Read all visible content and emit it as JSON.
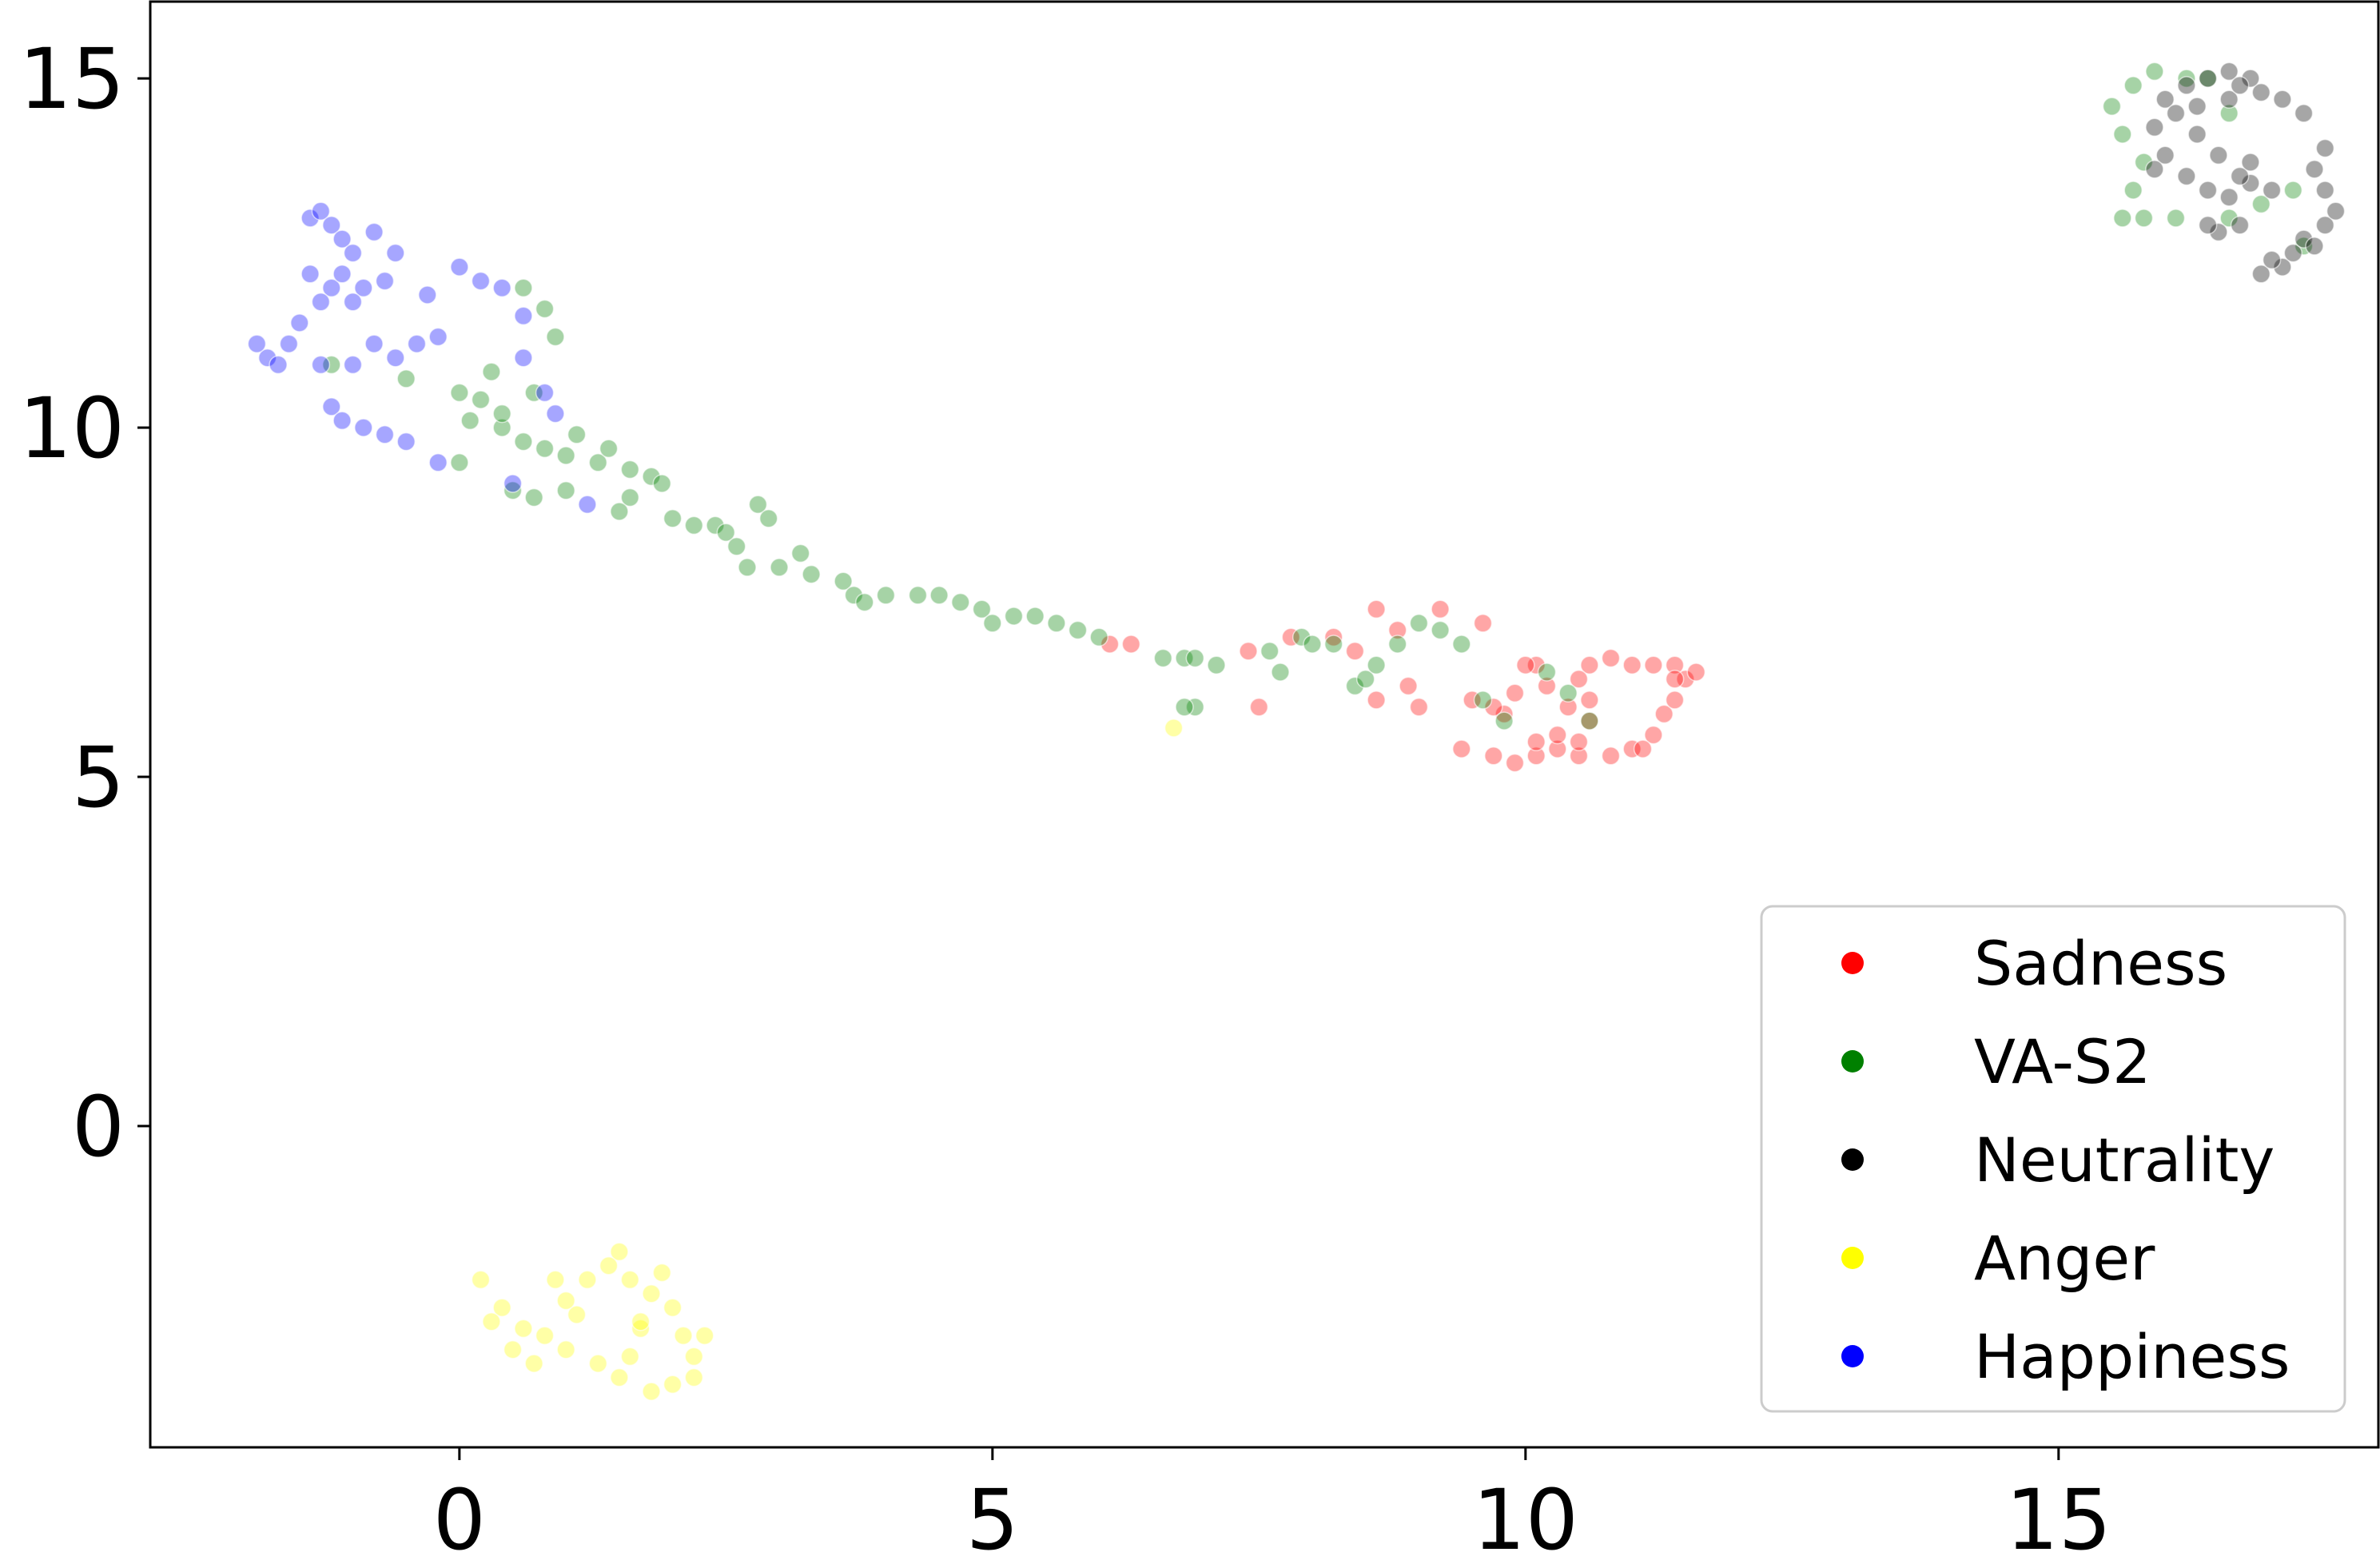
{
  "chart_data": {
    "type": "scatter",
    "title": "",
    "xlabel": "",
    "ylabel": "",
    "xlim": [
      -2.9,
      18.0
    ],
    "ylim": [
      -4.6,
      16.1
    ],
    "xticks": [
      0,
      5,
      10,
      15
    ],
    "yticks": [
      0,
      5,
      10,
      15
    ],
    "xtick_labels": [
      "0",
      "5",
      "10",
      "15"
    ],
    "ytick_labels": [
      "0",
      "5",
      "10",
      "15"
    ],
    "grid": false,
    "legend": "bottom-right",
    "point_alpha": 0.35,
    "series": [
      {
        "name": "Sadness",
        "color": "#ff0000",
        "points": [
          [
            9.7,
            5.3
          ],
          [
            9.9,
            5.2
          ],
          [
            10.1,
            5.3
          ],
          [
            10.3,
            5.4
          ],
          [
            10.5,
            5.3
          ],
          [
            10.8,
            5.3
          ],
          [
            11.0,
            5.4
          ],
          [
            11.2,
            5.6
          ],
          [
            11.3,
            5.9
          ],
          [
            11.4,
            6.1
          ],
          [
            11.5,
            6.4
          ],
          [
            11.6,
            6.5
          ],
          [
            11.4,
            6.6
          ],
          [
            11.2,
            6.6
          ],
          [
            11.0,
            6.6
          ],
          [
            10.8,
            6.7
          ],
          [
            10.6,
            6.6
          ],
          [
            10.5,
            6.4
          ],
          [
            10.2,
            6.3
          ],
          [
            10.1,
            6.6
          ],
          [
            10.0,
            6.6
          ],
          [
            9.9,
            6.2
          ],
          [
            9.8,
            5.9
          ],
          [
            9.7,
            6.0
          ],
          [
            9.5,
            6.1
          ],
          [
            9.4,
            5.4
          ],
          [
            10.1,
            5.5
          ],
          [
            10.3,
            5.6
          ],
          [
            10.5,
            5.5
          ],
          [
            10.6,
            5.8
          ],
          [
            10.4,
            6.0
          ],
          [
            11.1,
            5.4
          ],
          [
            11.4,
            6.4
          ],
          [
            9.6,
            7.2
          ],
          [
            9.2,
            7.4
          ],
          [
            8.8,
            7.1
          ],
          [
            8.6,
            7.4
          ],
          [
            8.4,
            6.8
          ],
          [
            8.2,
            7.0
          ],
          [
            7.8,
            7.0
          ],
          [
            7.4,
            6.8
          ],
          [
            7.5,
            6.0
          ],
          [
            6.3,
            6.9
          ],
          [
            6.1,
            6.9
          ],
          [
            8.9,
            6.3
          ],
          [
            9.0,
            6.0
          ],
          [
            8.6,
            6.1
          ],
          [
            10.6,
            6.1
          ]
        ]
      },
      {
        "name": "VA-S2",
        "color": "#008000",
        "points": [
          [
            -1.2,
            10.9
          ],
          [
            0.0,
            10.5
          ],
          [
            0.1,
            10.1
          ],
          [
            0.2,
            10.4
          ],
          [
            0.4,
            10.0
          ],
          [
            0.6,
            9.8
          ],
          [
            0.8,
            9.7
          ],
          [
            1.0,
            9.6
          ],
          [
            1.1,
            9.9
          ],
          [
            1.3,
            9.5
          ],
          [
            1.4,
            9.7
          ],
          [
            1.6,
            9.4
          ],
          [
            1.8,
            9.3
          ],
          [
            1.9,
            9.2
          ],
          [
            1.6,
            9.0
          ],
          [
            1.5,
            8.8
          ],
          [
            2.0,
            8.7
          ],
          [
            2.2,
            8.6
          ],
          [
            2.4,
            8.6
          ],
          [
            2.5,
            8.5
          ],
          [
            2.6,
            8.3
          ],
          [
            2.8,
            8.9
          ],
          [
            2.9,
            8.7
          ],
          [
            2.7,
            8.0
          ],
          [
            3.0,
            8.0
          ],
          [
            3.2,
            8.2
          ],
          [
            3.3,
            7.9
          ],
          [
            3.6,
            7.8
          ],
          [
            3.7,
            7.6
          ],
          [
            3.8,
            7.5
          ],
          [
            4.0,
            7.6
          ],
          [
            4.3,
            7.6
          ],
          [
            4.5,
            7.6
          ],
          [
            4.7,
            7.5
          ],
          [
            4.9,
            7.4
          ],
          [
            5.0,
            7.2
          ],
          [
            5.2,
            7.3
          ],
          [
            5.4,
            7.3
          ],
          [
            5.6,
            7.2
          ],
          [
            5.8,
            7.1
          ],
          [
            6.0,
            7.0
          ],
          [
            6.6,
            6.7
          ],
          [
            6.8,
            6.7
          ],
          [
            6.9,
            6.7
          ],
          [
            7.1,
            6.6
          ],
          [
            6.9,
            6.0
          ],
          [
            6.8,
            6.0
          ],
          [
            7.6,
            6.8
          ],
          [
            7.7,
            6.5
          ],
          [
            7.9,
            7.0
          ],
          [
            8.0,
            6.9
          ],
          [
            8.2,
            6.9
          ],
          [
            8.4,
            6.3
          ],
          [
            8.5,
            6.4
          ],
          [
            8.6,
            6.6
          ],
          [
            8.8,
            6.9
          ],
          [
            9.0,
            7.2
          ],
          [
            9.2,
            7.1
          ],
          [
            9.4,
            6.9
          ],
          [
            9.6,
            6.1
          ],
          [
            9.8,
            5.8
          ],
          [
            10.2,
            6.5
          ],
          [
            10.4,
            6.2
          ],
          [
            10.6,
            5.8
          ],
          [
            0.3,
            10.8
          ],
          [
            0.4,
            10.2
          ],
          [
            0.8,
            11.7
          ],
          [
            0.6,
            12.0
          ],
          [
            0.9,
            11.3
          ],
          [
            1.0,
            9.1
          ],
          [
            0.7,
            9.0
          ],
          [
            0.5,
            9.1
          ],
          [
            0.7,
            10.5
          ],
          [
            -0.5,
            10.7
          ],
          [
            0.0,
            9.5
          ],
          [
            15.6,
            13.0
          ],
          [
            15.8,
            13.0
          ],
          [
            16.1,
            13.0
          ],
          [
            15.7,
            13.4
          ],
          [
            15.8,
            13.8
          ],
          [
            15.6,
            14.2
          ],
          [
            15.5,
            14.6
          ],
          [
            15.7,
            14.9
          ],
          [
            15.9,
            15.1
          ],
          [
            16.2,
            15.0
          ],
          [
            16.4,
            15.0
          ],
          [
            16.6,
            14.5
          ],
          [
            17.2,
            13.4
          ],
          [
            17.3,
            12.6
          ],
          [
            16.9,
            13.2
          ],
          [
            16.6,
            13.0
          ]
        ]
      },
      {
        "name": "Neutrality",
        "color": "#000000",
        "points": [
          [
            16.5,
            12.8
          ],
          [
            16.7,
            12.9
          ],
          [
            16.9,
            12.2
          ],
          [
            17.1,
            12.3
          ],
          [
            17.2,
            12.5
          ],
          [
            17.3,
            12.7
          ],
          [
            17.5,
            12.9
          ],
          [
            17.6,
            13.1
          ],
          [
            17.5,
            13.4
          ],
          [
            17.4,
            13.7
          ],
          [
            17.5,
            14.0
          ],
          [
            17.3,
            14.5
          ],
          [
            17.1,
            14.7
          ],
          [
            16.9,
            14.8
          ],
          [
            16.8,
            15.0
          ],
          [
            16.6,
            15.1
          ],
          [
            16.4,
            15.0
          ],
          [
            16.2,
            14.9
          ],
          [
            16.0,
            14.7
          ],
          [
            15.9,
            14.3
          ],
          [
            16.0,
            13.9
          ],
          [
            16.2,
            13.6
          ],
          [
            16.4,
            13.4
          ],
          [
            16.6,
            13.3
          ],
          [
            16.8,
            13.5
          ],
          [
            17.0,
            13.4
          ],
          [
            16.8,
            13.8
          ],
          [
            16.5,
            13.9
          ],
          [
            16.3,
            14.2
          ],
          [
            16.1,
            14.5
          ],
          [
            16.3,
            14.6
          ],
          [
            16.6,
            14.7
          ],
          [
            16.7,
            13.6
          ],
          [
            17.0,
            12.4
          ],
          [
            17.4,
            12.6
          ],
          [
            15.9,
            13.7
          ],
          [
            16.7,
            14.9
          ],
          [
            16.4,
            12.9
          ]
        ]
      },
      {
        "name": "Anger",
        "color": "#ffff00",
        "points": [
          [
            0.2,
            -2.2
          ],
          [
            0.4,
            -2.6
          ],
          [
            0.6,
            -2.9
          ],
          [
            0.8,
            -3.0
          ],
          [
            1.0,
            -3.2
          ],
          [
            1.1,
            -2.7
          ],
          [
            1.2,
            -2.2
          ],
          [
            1.3,
            -3.4
          ],
          [
            1.5,
            -3.6
          ],
          [
            1.6,
            -3.3
          ],
          [
            1.7,
            -2.9
          ],
          [
            1.8,
            -2.4
          ],
          [
            1.9,
            -2.1
          ],
          [
            2.0,
            -2.6
          ],
          [
            2.1,
            -3.0
          ],
          [
            2.2,
            -3.3
          ],
          [
            2.2,
            -3.6
          ],
          [
            2.0,
            -3.7
          ],
          [
            1.8,
            -3.8
          ],
          [
            1.5,
            -1.8
          ],
          [
            1.4,
            -2.0
          ],
          [
            1.6,
            -2.2
          ],
          [
            1.7,
            -2.8
          ],
          [
            0.5,
            -3.2
          ],
          [
            0.7,
            -3.4
          ],
          [
            0.9,
            -2.2
          ],
          [
            1.0,
            -2.5
          ],
          [
            0.3,
            -2.8
          ],
          [
            2.3,
            -3.0
          ],
          [
            6.7,
            5.7
          ]
        ]
      },
      {
        "name": "Happiness",
        "color": "#0000ff",
        "points": [
          [
            -1.4,
            13.0
          ],
          [
            -1.3,
            13.1
          ],
          [
            -1.2,
            12.9
          ],
          [
            -1.1,
            12.7
          ],
          [
            -1.0,
            12.5
          ],
          [
            -0.8,
            12.8
          ],
          [
            -0.6,
            12.5
          ],
          [
            -0.9,
            12.0
          ],
          [
            -1.0,
            11.8
          ],
          [
            -1.2,
            12.0
          ],
          [
            -1.4,
            12.2
          ],
          [
            -1.3,
            11.8
          ],
          [
            -1.5,
            11.5
          ],
          [
            -1.6,
            11.2
          ],
          [
            -1.8,
            11.0
          ],
          [
            -1.9,
            11.2
          ],
          [
            -1.7,
            10.9
          ],
          [
            -1.3,
            10.9
          ],
          [
            -1.0,
            10.9
          ],
          [
            -0.8,
            11.2
          ],
          [
            -0.6,
            11.0
          ],
          [
            -1.2,
            10.3
          ],
          [
            -1.1,
            10.1
          ],
          [
            -0.9,
            10.0
          ],
          [
            -0.7,
            9.9
          ],
          [
            -0.5,
            9.8
          ],
          [
            -0.2,
            9.5
          ],
          [
            -0.4,
            11.2
          ],
          [
            -0.2,
            11.3
          ],
          [
            0.0,
            12.3
          ],
          [
            0.2,
            12.1
          ],
          [
            0.4,
            12.0
          ],
          [
            0.6,
            11.6
          ],
          [
            0.6,
            11.0
          ],
          [
            0.8,
            10.5
          ],
          [
            0.9,
            10.2
          ],
          [
            1.2,
            8.9
          ],
          [
            0.5,
            9.2
          ],
          [
            -0.3,
            11.9
          ],
          [
            -1.1,
            12.2
          ],
          [
            -0.7,
            12.1
          ]
        ]
      }
    ]
  }
}
